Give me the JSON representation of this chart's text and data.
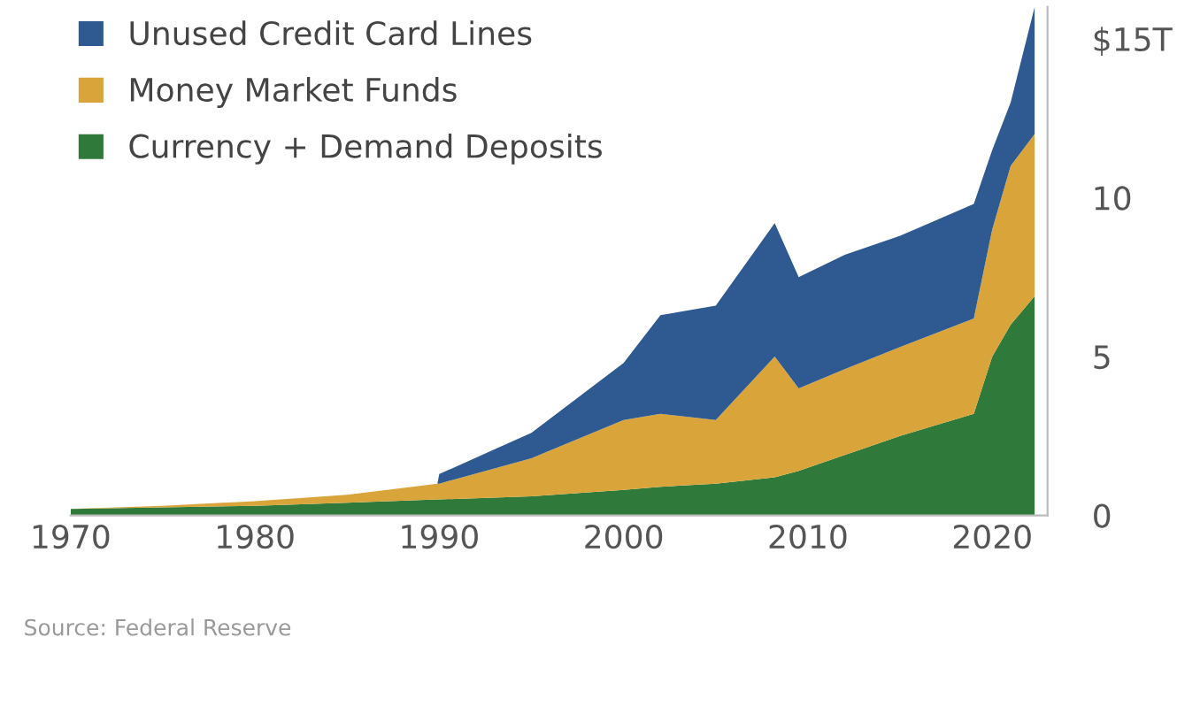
{
  "chart_data": {
    "type": "area",
    "stacked": true,
    "x": [
      1970,
      1975,
      1980,
      1985,
      1989.9,
      1990,
      1995,
      2000,
      2002,
      2005,
      2008.2,
      2009.5,
      2012,
      2015,
      2019,
      2020,
      2021,
      2022.3
    ],
    "series": [
      {
        "name": "Currency + Demand Deposits",
        "color": "#2f7a3a",
        "values": [
          0.2,
          0.25,
          0.3,
          0.4,
          0.5,
          0.5,
          0.6,
          0.8,
          0.9,
          1.0,
          1.2,
          1.4,
          1.9,
          2.5,
          3.2,
          5.0,
          6.0,
          6.9
        ]
      },
      {
        "name": "Money Market Funds",
        "color": "#d9a53a",
        "values": [
          0,
          0.05,
          0.15,
          0.25,
          0.5,
          0.5,
          1.2,
          2.2,
          2.3,
          2.0,
          3.8,
          2.6,
          2.7,
          2.8,
          3.0,
          4.0,
          5.0,
          5.1
        ]
      },
      {
        "name": "Unused Credit Card Lines",
        "color": "#2e5a91",
        "values": [
          0,
          0,
          0,
          0,
          0,
          0.3,
          0.8,
          1.8,
          3.1,
          3.6,
          4.2,
          3.5,
          3.6,
          3.5,
          3.6,
          2.5,
          2.0,
          4.0
        ]
      }
    ],
    "xlim": [
      1970,
      2023
    ],
    "xticks": [
      1970,
      1980,
      1990,
      2000,
      2010,
      2020
    ],
    "ylim": [
      0,
      16
    ],
    "yticks": [
      0,
      5,
      10,
      {
        "value": 15,
        "label": "$15T"
      }
    ],
    "grid": false,
    "legend": "top left",
    "annotations": [
      "Source: Federal Reserve"
    ]
  }
}
